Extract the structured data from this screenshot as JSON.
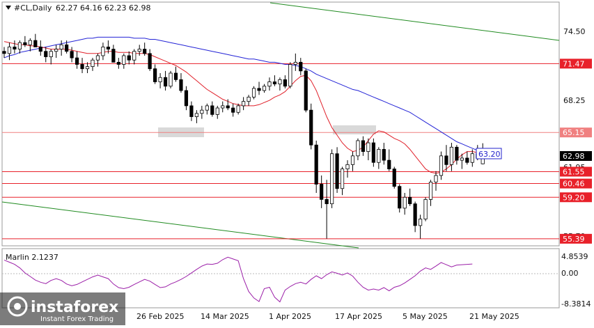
{
  "header": {
    "symbol": "#CL,Daily",
    "ohlc": "62.27 64.16 62.23 62.98"
  },
  "indicator": {
    "name": "Marlin 2.1237",
    "levels": [
      "4.8539",
      "0.00",
      "-8.3814"
    ],
    "points": [
      3.8,
      3.2,
      2.6,
      1.6,
      0.2,
      -0.8,
      -1.8,
      -2.4,
      -2.8,
      -1.9,
      -1.4,
      -1.9,
      -2.9,
      -3.4,
      -3.0,
      -2.3,
      -1.6,
      -0.9,
      -0.4,
      -0.9,
      -1.4,
      -2.9,
      -3.9,
      -4.2,
      -3.8,
      -3.0,
      -2.3,
      -1.6,
      -2.1,
      -3.0,
      -3.9,
      -3.7,
      -2.9,
      -2.3,
      -1.6,
      -0.8,
      0.2,
      1.2,
      2.1,
      2.7,
      2.6,
      2.9,
      3.9,
      4.6,
      4.1,
      3.6,
      -1.4,
      -5.0,
      -6.8,
      -7.8,
      -4.2,
      -3.8,
      -6.6,
      -7.9,
      -4.6,
      -3.6,
      -2.8,
      -2.4,
      -2.9,
      -1.6,
      -0.6,
      -1.4,
      -0.3,
      0.5,
      0.1,
      -0.4,
      0.2,
      -0.7,
      -2.4,
      -3.8,
      -4.6,
      -4.3,
      -4.6,
      -3.9,
      -4.8,
      -3.8,
      -3.4,
      -2.6,
      -1.6,
      -0.6,
      0.7,
      1.6,
      1.2,
      2.1,
      3.1,
      2.5,
      1.9,
      2.4,
      2.5,
      2.6,
      2.7
    ]
  },
  "price_axis": {
    "ticks": [
      "74.50",
      "68.25",
      "61.95",
      "55.70"
    ],
    "levels": [
      {
        "value": 71.47,
        "label": "71.47",
        "color": "#e8212a"
      },
      {
        "value": 65.15,
        "label": "65.15",
        "color": "#f08080"
      },
      {
        "value": 61.55,
        "label": "61.55",
        "color": "#e8212a"
      },
      {
        "value": 60.46,
        "label": "60.46",
        "color": "#e8212a"
      },
      {
        "value": 59.2,
        "label": "59.20",
        "color": "#e8212a"
      },
      {
        "value": 55.39,
        "label": "55.39",
        "color": "#e8212a"
      }
    ],
    "current": {
      "value": 62.98,
      "label": "62.98"
    },
    "ma_label": {
      "value": 63.2,
      "label": "63.20"
    }
  },
  "date_axis": {
    "labels": [
      "26 Feb 2025",
      "14 Mar 2025",
      "1 Apr 2025",
      "17 Apr 2025",
      "5 May 2025",
      "21 May 2025"
    ]
  },
  "watermark": {
    "brand": "instaforex",
    "tagline": "Instant Forex Trading"
  },
  "chart_data": {
    "type": "candlestick",
    "ylim": [
      54.7,
      76.8
    ],
    "candles": [
      [
        72.6,
        73.0,
        72.0,
        72.4
      ],
      [
        72.4,
        73.4,
        71.8,
        73.0
      ],
      [
        73.0,
        73.6,
        72.4,
        72.8
      ],
      [
        72.8,
        73.6,
        72.4,
        73.4
      ],
      [
        73.4,
        74.0,
        73.0,
        73.2
      ],
      [
        73.2,
        73.8,
        72.6,
        73.6
      ],
      [
        73.6,
        74.2,
        73.0,
        73.0
      ],
      [
        73.0,
        73.6,
        72.2,
        72.6
      ],
      [
        72.6,
        73.0,
        71.6,
        72.1
      ],
      [
        72.1,
        72.8,
        71.4,
        72.6
      ],
      [
        72.6,
        73.2,
        72.0,
        72.8
      ],
      [
        72.8,
        73.6,
        72.2,
        73.2
      ],
      [
        73.2,
        73.6,
        72.4,
        72.6
      ],
      [
        72.6,
        73.0,
        71.6,
        72.0
      ],
      [
        72.0,
        72.6,
        71.0,
        71.4
      ],
      [
        71.4,
        72.0,
        70.6,
        71.0
      ],
      [
        71.0,
        71.6,
        70.6,
        71.2
      ],
      [
        71.2,
        72.0,
        70.8,
        71.8
      ],
      [
        71.8,
        72.4,
        71.2,
        72.2
      ],
      [
        72.2,
        73.4,
        71.8,
        73.0
      ],
      [
        73.0,
        73.6,
        72.4,
        72.8
      ],
      [
        72.8,
        73.2,
        71.6,
        71.6
      ],
      [
        71.6,
        72.0,
        71.0,
        71.4
      ],
      [
        71.4,
        72.4,
        71.0,
        72.2
      ],
      [
        72.2,
        72.6,
        71.4,
        71.8
      ],
      [
        71.8,
        72.8,
        71.4,
        72.6
      ],
      [
        72.6,
        73.2,
        72.2,
        72.8
      ],
      [
        72.8,
        73.4,
        72.2,
        72.4
      ],
      [
        72.4,
        72.8,
        70.8,
        71.0
      ],
      [
        71.0,
        71.4,
        69.6,
        69.8
      ],
      [
        69.8,
        70.6,
        69.2,
        70.2
      ],
      [
        70.2,
        70.8,
        69.0,
        69.4
      ],
      [
        69.4,
        70.8,
        69.2,
        70.6
      ],
      [
        70.6,
        71.2,
        69.8,
        70.0
      ],
      [
        70.0,
        70.6,
        68.8,
        69.0
      ],
      [
        69.0,
        69.4,
        67.2,
        67.6
      ],
      [
        67.6,
        68.0,
        66.2,
        66.6
      ],
      [
        66.6,
        67.2,
        66.0,
        66.9
      ],
      [
        66.9,
        67.6,
        66.4,
        67.2
      ],
      [
        67.2,
        67.8,
        66.8,
        67.6
      ],
      [
        67.6,
        68.0,
        66.6,
        66.8
      ],
      [
        66.8,
        67.6,
        66.4,
        67.4
      ],
      [
        67.4,
        68.0,
        67.0,
        67.6
      ],
      [
        67.6,
        68.2,
        67.2,
        67.4
      ],
      [
        67.4,
        67.8,
        66.6,
        67.0
      ],
      [
        67.0,
        67.8,
        66.8,
        67.6
      ],
      [
        67.6,
        68.4,
        67.2,
        68.0
      ],
      [
        68.0,
        68.6,
        67.6,
        68.4
      ],
      [
        68.4,
        69.4,
        68.2,
        69.2
      ],
      [
        69.2,
        69.8,
        68.6,
        69.0
      ],
      [
        69.0,
        69.6,
        68.8,
        69.4
      ],
      [
        69.4,
        70.2,
        69.0,
        69.8
      ],
      [
        69.8,
        70.4,
        69.4,
        69.6
      ],
      [
        69.6,
        70.2,
        69.0,
        70.0
      ],
      [
        70.0,
        70.4,
        69.2,
        69.4
      ],
      [
        69.4,
        71.6,
        69.2,
        71.4
      ],
      [
        71.4,
        72.4,
        70.8,
        71.6
      ],
      [
        71.6,
        72.0,
        70.4,
        70.8
      ],
      [
        70.8,
        71.0,
        67.0,
        67.2
      ],
      [
        67.2,
        67.8,
        63.6,
        64.0
      ],
      [
        64.0,
        64.4,
        59.6,
        60.4
      ],
      [
        60.4,
        61.2,
        58.2,
        59.0
      ],
      [
        59.0,
        60.8,
        55.4,
        58.6
      ],
      [
        58.6,
        63.6,
        58.2,
        63.2
      ],
      [
        63.2,
        63.8,
        59.6,
        60.0
      ],
      [
        60.0,
        62.0,
        59.4,
        61.8
      ],
      [
        61.8,
        62.6,
        61.0,
        62.2
      ],
      [
        62.2,
        63.4,
        61.6,
        63.0
      ],
      [
        63.0,
        64.6,
        62.6,
        64.4
      ],
      [
        64.4,
        64.8,
        63.0,
        63.4
      ],
      [
        63.4,
        64.6,
        62.6,
        64.2
      ],
      [
        64.2,
        64.6,
        62.0,
        62.4
      ],
      [
        62.4,
        63.8,
        61.8,
        63.6
      ],
      [
        63.6,
        64.2,
        62.2,
        62.6
      ],
      [
        62.6,
        63.6,
        61.6,
        61.8
      ],
      [
        61.8,
        62.0,
        60.0,
        60.2
      ],
      [
        60.2,
        60.4,
        57.8,
        58.2
      ],
      [
        58.2,
        59.6,
        57.6,
        59.2
      ],
      [
        59.2,
        60.0,
        58.4,
        58.6
      ],
      [
        58.6,
        58.8,
        56.0,
        56.6
      ],
      [
        56.6,
        57.6,
        55.4,
        57.2
      ],
      [
        57.2,
        59.2,
        57.0,
        59.0
      ],
      [
        59.0,
        60.8,
        58.4,
        60.6
      ],
      [
        60.6,
        61.6,
        59.8,
        61.2
      ],
      [
        61.2,
        63.4,
        60.8,
        63.0
      ],
      [
        63.0,
        64.0,
        61.6,
        62.2
      ],
      [
        62.2,
        64.2,
        61.6,
        63.8
      ],
      [
        63.8,
        64.0,
        62.2,
        62.6
      ],
      [
        62.6,
        63.2,
        61.8,
        62.8
      ],
      [
        62.8,
        63.4,
        62.2,
        62.4
      ],
      [
        62.4,
        63.6,
        62.0,
        63.2
      ],
      [
        63.2,
        64.0,
        62.6,
        62.8
      ],
      [
        62.27,
        64.16,
        62.23,
        62.98
      ]
    ],
    "ma_fast": [
      73.5,
      73.4,
      73.3,
      73.2,
      73.2,
      73.1,
      73.1,
      73.0,
      72.9,
      72.8,
      72.8,
      72.8,
      72.8,
      72.7,
      72.6,
      72.5,
      72.4,
      72.4,
      72.4,
      72.5,
      72.6,
      72.6,
      72.5,
      72.5,
      72.5,
      72.4,
      72.4,
      72.4,
      72.3,
      72.1,
      71.9,
      71.7,
      71.5,
      71.3,
      71.0,
      70.7,
      70.3,
      69.9,
      69.5,
      69.1,
      68.8,
      68.5,
      68.2,
      68.0,
      67.8,
      67.7,
      67.6,
      67.6,
      67.6,
      67.7,
      67.9,
      68.1,
      68.4,
      68.6,
      68.9,
      69.4,
      69.9,
      70.3,
      70.4,
      69.9,
      69.0,
      67.8,
      66.6,
      65.6,
      64.9,
      64.2,
      63.7,
      63.4,
      63.5,
      63.8,
      64.4,
      65.0,
      65.3,
      65.2,
      64.9,
      64.6,
      64.4,
      64.1,
      63.6,
      63.0,
      62.4,
      61.8,
      61.5,
      61.4,
      61.5,
      61.8,
      62.2,
      62.7,
      63.1,
      63.4,
      63.4,
      63.3,
      63.1,
      62.9
    ],
    "ma_slow": [
      72.0,
      72.2,
      72.3,
      72.5,
      72.6,
      72.7,
      72.8,
      72.9,
      73.0,
      73.1,
      73.2,
      73.3,
      73.4,
      73.5,
      73.6,
      73.7,
      73.8,
      73.8,
      73.9,
      73.9,
      73.9,
      73.9,
      73.9,
      73.9,
      73.9,
      73.8,
      73.8,
      73.8,
      73.7,
      73.7,
      73.6,
      73.5,
      73.4,
      73.3,
      73.2,
      73.1,
      73.0,
      72.9,
      72.8,
      72.7,
      72.6,
      72.5,
      72.4,
      72.3,
      72.2,
      72.1,
      72.0,
      71.9,
      71.9,
      71.8,
      71.7,
      71.6,
      71.6,
      71.5,
      71.4,
      71.4,
      71.3,
      71.2,
      71.0,
      70.8,
      70.5,
      70.3,
      70.1,
      69.9,
      69.7,
      69.5,
      69.3,
      69.1,
      69.0,
      68.8,
      68.6,
      68.4,
      68.2,
      68.0,
      67.8,
      67.6,
      67.4,
      67.2,
      67.0,
      66.7,
      66.4,
      66.1,
      65.8,
      65.5,
      65.2,
      64.9,
      64.6,
      64.3,
      64.1,
      63.9,
      63.7,
      63.5,
      63.35,
      63.2
    ]
  }
}
